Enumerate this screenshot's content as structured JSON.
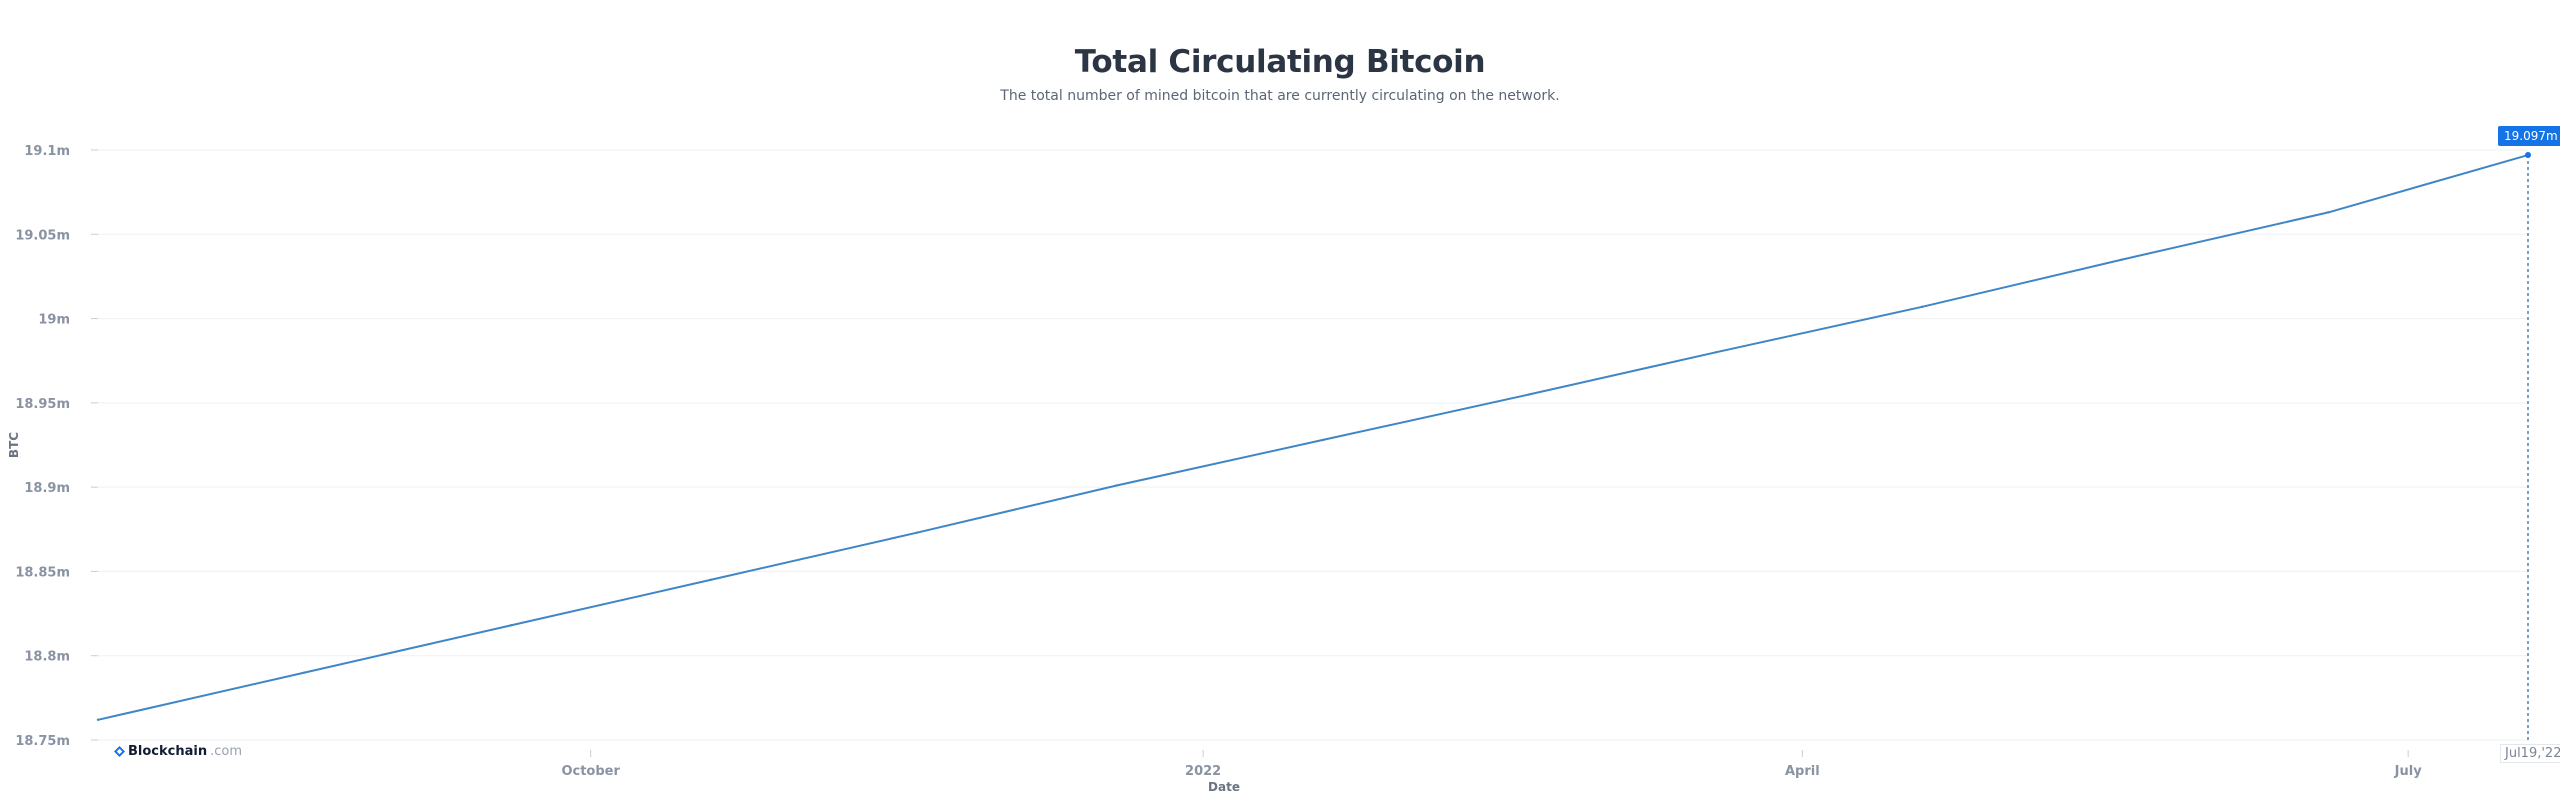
{
  "header": {
    "title": "Total Circulating Bitcoin",
    "subtitle": "The total number of mined bitcoin that are currently circulating on the network."
  },
  "brand": {
    "name": "Blockchain",
    "suffix": ".com",
    "icon": "blockchain-logo-icon",
    "color": "#121d33",
    "icon_color": "#1473e6"
  },
  "tooltip": {
    "value_label": "19.097m",
    "date_label": "Jul19,'22"
  },
  "colors": {
    "line": "#3f86c6",
    "accent": "#1473e6",
    "grid": "#eef0f3"
  },
  "chart_data": {
    "type": "line",
    "title": "Total Circulating Bitcoin",
    "subtitle": "The total number of mined bitcoin that are currently circulating on the network.",
    "xlabel": "Date",
    "ylabel": "BTC",
    "ylim": [
      18750000,
      19100000
    ],
    "xlim": [
      "2021-07-19",
      "2022-07-19"
    ],
    "y_ticks": [
      {
        "value": 18750000,
        "label": "18.75m"
      },
      {
        "value": 18800000,
        "label": "18.8m"
      },
      {
        "value": 18850000,
        "label": "18.85m"
      },
      {
        "value": 18900000,
        "label": "18.9m"
      },
      {
        "value": 18950000,
        "label": "18.95m"
      },
      {
        "value": 19000000,
        "label": "19m"
      },
      {
        "value": 19050000,
        "label": "19.05m"
      },
      {
        "value": 19100000,
        "label": "19.1m"
      }
    ],
    "x_ticks": [
      {
        "date": "2021-10-01",
        "label": "October"
      },
      {
        "date": "2022-01-01",
        "label": "2022"
      },
      {
        "date": "2022-04-01",
        "label": "April"
      },
      {
        "date": "2022-07-01",
        "label": "July"
      }
    ],
    "grid": true,
    "legend": "none",
    "series": [
      {
        "x": [
          "2021-07-19",
          "2021-08-19",
          "2021-09-19",
          "2021-10-19",
          "2021-11-19",
          "2021-12-19",
          "2022-01-19",
          "2022-02-19",
          "2022-03-19",
          "2022-04-19",
          "2022-05-19",
          "2022-06-19",
          "2022-07-19"
        ],
        "y": [
          18762000,
          18790000,
          18818000,
          18845000,
          18873000,
          18901000,
          18928000,
          18955000,
          18980000,
          19007000,
          19035000,
          19063000,
          19097000
        ]
      }
    ]
  }
}
